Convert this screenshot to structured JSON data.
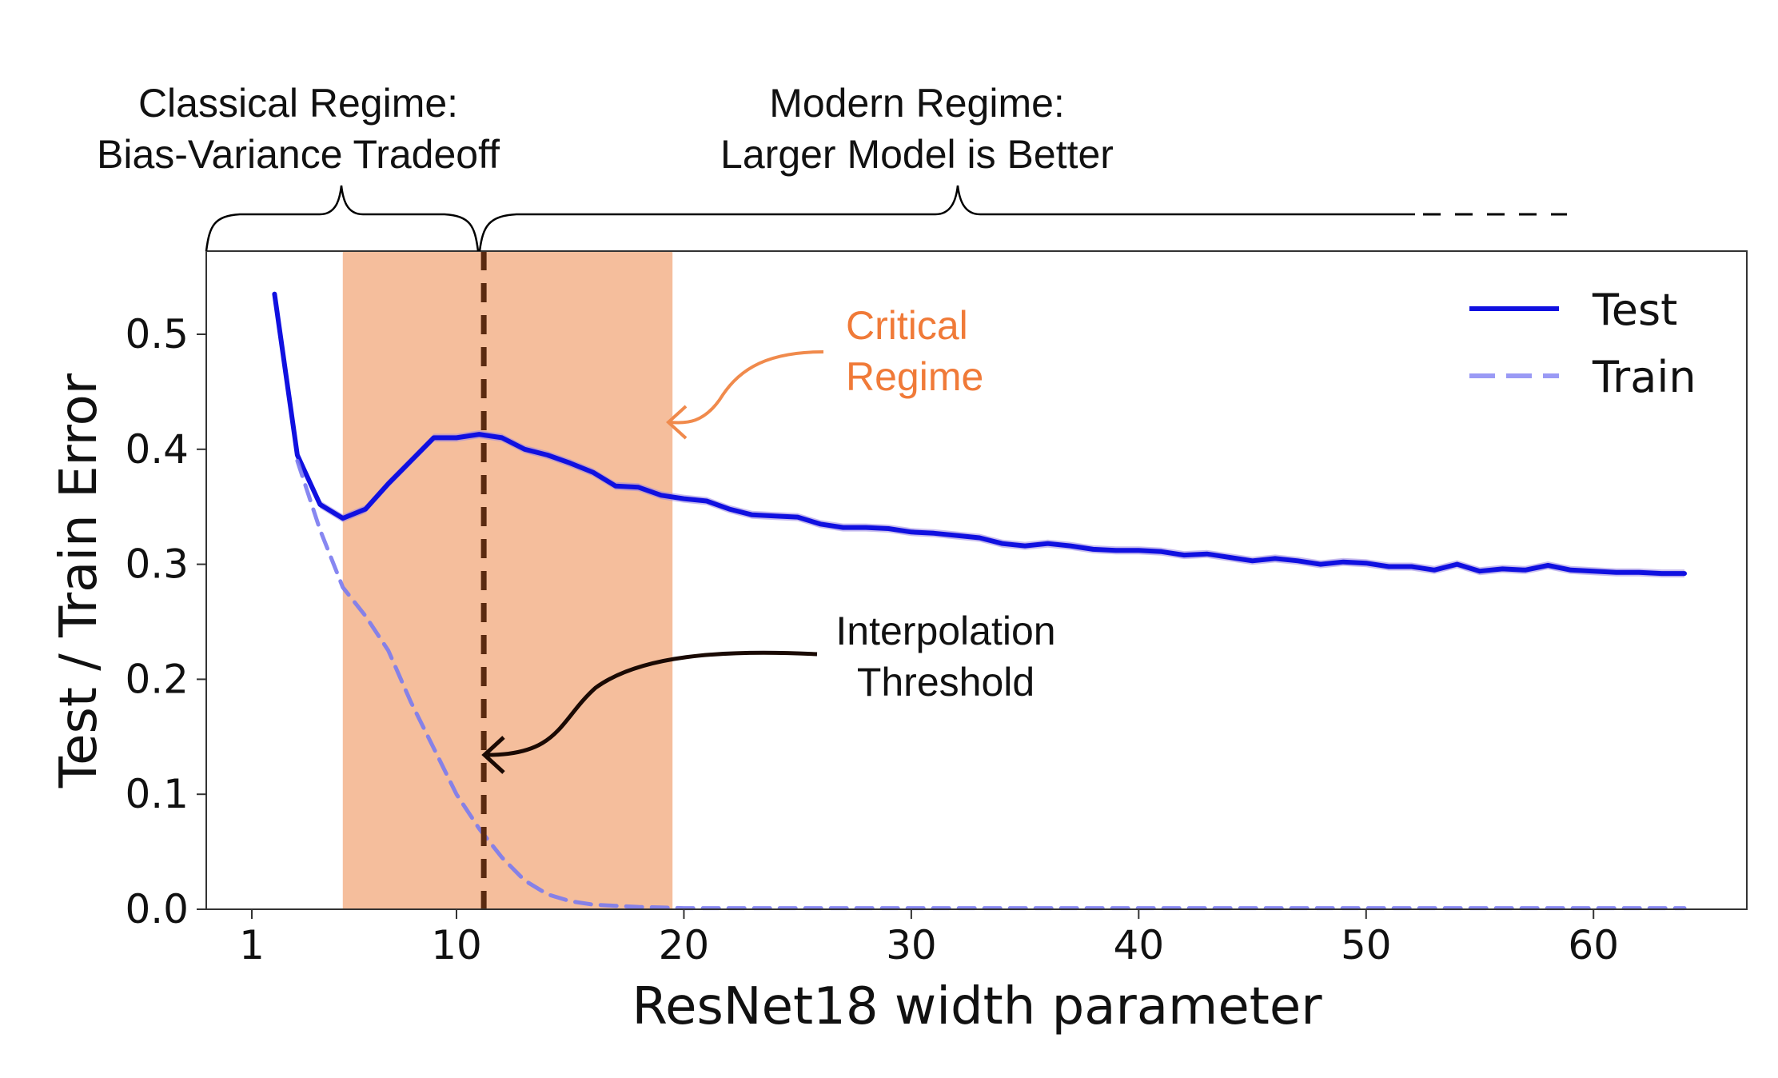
{
  "chart_data": {
    "type": "line",
    "title": "",
    "xlabel": "ResNet18 width parameter",
    "ylabel": "Test / Train Error",
    "xlim": [
      -1,
      68
    ],
    "ylim": [
      0.0,
      0.57
    ],
    "x_ticks": [
      1,
      10,
      20,
      30,
      40,
      50,
      60
    ],
    "y_ticks": [
      0.0,
      0.1,
      0.2,
      0.3,
      0.4,
      0.5
    ],
    "x_tick_labels": [
      "1",
      "10",
      "20",
      "30",
      "40",
      "50",
      "60"
    ],
    "y_tick_labels": [
      "0.0",
      "0.1",
      "0.2",
      "0.3",
      "0.4",
      "0.5"
    ],
    "grid": false,
    "legend": {
      "position": "top-right",
      "entries": [
        "Test",
        "Train"
      ]
    },
    "series": [
      {
        "name": "Test",
        "style": "solid",
        "color": "#1010e0",
        "x": [
          2,
          3,
          4,
          5,
          6,
          7,
          8,
          9,
          10,
          11,
          12,
          13,
          14,
          15,
          16,
          17,
          18,
          19,
          20,
          21,
          22,
          23,
          24,
          25,
          26,
          27,
          28,
          29,
          30,
          31,
          32,
          33,
          34,
          35,
          36,
          37,
          38,
          39,
          40,
          41,
          42,
          43,
          44,
          45,
          46,
          47,
          48,
          49,
          50,
          51,
          52,
          53,
          54,
          55,
          56,
          57,
          58,
          59,
          60,
          61,
          62,
          63,
          64
        ],
        "y": [
          0.535,
          0.395,
          0.352,
          0.34,
          0.348,
          0.37,
          0.39,
          0.41,
          0.41,
          0.413,
          0.41,
          0.4,
          0.395,
          0.388,
          0.38,
          0.368,
          0.367,
          0.36,
          0.357,
          0.355,
          0.348,
          0.343,
          0.342,
          0.341,
          0.335,
          0.332,
          0.332,
          0.331,
          0.328,
          0.327,
          0.325,
          0.323,
          0.318,
          0.316,
          0.318,
          0.316,
          0.313,
          0.312,
          0.312,
          0.311,
          0.308,
          0.309,
          0.306,
          0.303,
          0.305,
          0.303,
          0.3,
          0.302,
          0.301,
          0.298,
          0.298,
          0.295,
          0.3,
          0.294,
          0.296,
          0.295,
          0.299,
          0.295,
          0.294,
          0.293,
          0.293,
          0.292,
          0.292
        ]
      },
      {
        "name": "Train",
        "style": "dashed",
        "color": "#7a7af0",
        "x": [
          3,
          4,
          5,
          6,
          7,
          8,
          9,
          10,
          11,
          12,
          13,
          14,
          15,
          16,
          17,
          18,
          19,
          20,
          22,
          25,
          30,
          35,
          40,
          45,
          50,
          55,
          60,
          64
        ],
        "y": [
          0.39,
          0.33,
          0.28,
          0.255,
          0.225,
          0.18,
          0.14,
          0.1,
          0.07,
          0.045,
          0.025,
          0.013,
          0.007,
          0.004,
          0.003,
          0.002,
          0.0015,
          0.001,
          0.001,
          0.001,
          0.001,
          0.001,
          0.001,
          0.001,
          0.001,
          0.001,
          0.001,
          0.001
        ]
      }
    ],
    "critical_regime_span": [
      5,
      19.5
    ],
    "interpolation_threshold_x": 11.2
  },
  "annotations": {
    "classical_line1": "Classical Regime:",
    "classical_line2": "Bias-Variance Tradeoff",
    "modern_line1": "Modern Regime:",
    "modern_line2": "Larger Model is Better",
    "critical_line1": "Critical",
    "critical_line2": "Regime",
    "interp_line1": "Interpolation",
    "interp_line2": "Threshold"
  },
  "colors": {
    "critical_fill": "#f5be9c",
    "critical_text": "#f07a38",
    "threshold_line": "#5a2a10",
    "test_band": "#9a86e0"
  }
}
